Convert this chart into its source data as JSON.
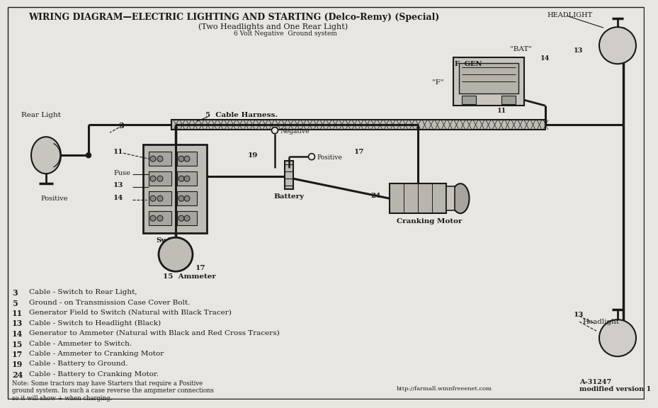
{
  "title_line1": "WIRING DIAGRAM—ELECTRIC LIGHTING AND STARTING (Delco-Remy) (Special)",
  "title_line2": "(Two Headlights and One Rear Light)",
  "title_line3": "6 Volt Negative  Ground system",
  "bg_color": "#e8e6e0",
  "line_color": "#1a1a1a",
  "legend_items": [
    [
      "3",
      "Cable - Switch to Rear Light,"
    ],
    [
      "5",
      "Ground - on Transmission Case Cover Bolt."
    ],
    [
      "11",
      "Generator Field to Switch (Natural with Black Tracer)"
    ],
    [
      "13",
      "Cable - Switch to Headlight (Black)"
    ],
    [
      "14",
      "Generator to Ammeter (Natural with Black and Red Cross Tracers)"
    ],
    [
      "15",
      "Cable - Ammeter to Switch."
    ],
    [
      "17",
      "Cable - Ammeter to Cranking Motor"
    ],
    [
      "19",
      "Cable - Battery to Ground."
    ],
    [
      "24",
      "Cable - Battery to Cranking Motor."
    ]
  ],
  "note_text": "Note: Some tractors may have Starters that require a Positive\nground system. In such a case reverse the ampmeter connections\nso it will show + when charging.",
  "footer_url": "http://farmall.winnfreeenet.com",
  "footer_code": "A-31247\nmodified version 1"
}
